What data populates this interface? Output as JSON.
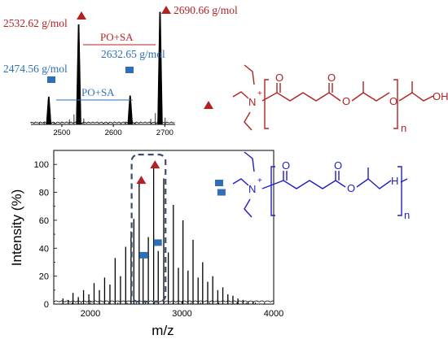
{
  "colors": {
    "red": "#b22222",
    "blue": "#2f6fb5",
    "navy": "#1e1ec8",
    "black": "#000000",
    "guide": "#3c4f6a"
  },
  "chart_data": [
    {
      "type": "line",
      "panel": "inset",
      "title": "",
      "xlabel": "",
      "ylabel": "",
      "xlim": [
        2440,
        2720
      ],
      "x_ticks": [
        "2500",
        "2600",
        "2700"
      ],
      "peaks": [
        {
          "x": 2474.56,
          "rel": 0.24
        },
        {
          "x": 2532.62,
          "rel": 0.87
        },
        {
          "x": 2632.65,
          "rel": 0.25
        },
        {
          "x": 2690.66,
          "rel": 0.98
        }
      ],
      "annotations": [
        {
          "text": "2532.62 g/mol",
          "marker": "triangle",
          "color": "red"
        },
        {
          "text": "2690.66 g/mol",
          "marker": "triangle",
          "color": "red"
        },
        {
          "text": "2474.56 g/mol",
          "marker": "square",
          "color": "blue"
        },
        {
          "text": "2632.65 g/mol",
          "marker": "square",
          "color": "blue"
        },
        {
          "text": "PO+SA",
          "color": "red"
        },
        {
          "text": "PO+SA",
          "color": "blue"
        }
      ]
    },
    {
      "type": "line",
      "panel": "main",
      "title": "",
      "xlabel": "m/z",
      "ylabel": "Intensity  (%)",
      "xlim": [
        1600,
        4000
      ],
      "ylim": [
        0,
        110
      ],
      "x_ticks": [
        "2000",
        "3000",
        "4000"
      ],
      "y_ticks": [
        "0",
        "20",
        "40",
        "60",
        "80",
        "100"
      ],
      "peaks": [
        {
          "x": 1700,
          "y": 4
        },
        {
          "x": 1758,
          "y": 3
        },
        {
          "x": 1810,
          "y": 8
        },
        {
          "x": 1868,
          "y": 5
        },
        {
          "x": 1925,
          "y": 10
        },
        {
          "x": 1983,
          "y": 7
        },
        {
          "x": 2040,
          "y": 15
        },
        {
          "x": 2098,
          "y": 10
        },
        {
          "x": 2155,
          "y": 19
        },
        {
          "x": 2213,
          "y": 14
        },
        {
          "x": 2270,
          "y": 33
        },
        {
          "x": 2328,
          "y": 20
        },
        {
          "x": 2385,
          "y": 41
        },
        {
          "x": 2443,
          "y": 52
        },
        {
          "x": 2474,
          "y": 61
        },
        {
          "x": 2532,
          "y": 87
        },
        {
          "x": 2575,
          "y": 34
        },
        {
          "x": 2632,
          "y": 48
        },
        {
          "x": 2690,
          "y": 98
        },
        {
          "x": 2740,
          "y": 38
        },
        {
          "x": 2800,
          "y": 90
        },
        {
          "x": 2850,
          "y": 37
        },
        {
          "x": 2905,
          "y": 71
        },
        {
          "x": 2960,
          "y": 26
        },
        {
          "x": 3010,
          "y": 60
        },
        {
          "x": 3065,
          "y": 24
        },
        {
          "x": 3120,
          "y": 46
        },
        {
          "x": 3175,
          "y": 19
        },
        {
          "x": 3225,
          "y": 30
        },
        {
          "x": 3280,
          "y": 16
        },
        {
          "x": 3335,
          "y": 20
        },
        {
          "x": 3390,
          "y": 10
        },
        {
          "x": 3445,
          "y": 12
        },
        {
          "x": 3500,
          "y": 7
        },
        {
          "x": 3555,
          "y": 6
        },
        {
          "x": 3610,
          "y": 4
        },
        {
          "x": 3665,
          "y": 3
        },
        {
          "x": 3720,
          "y": 2
        },
        {
          "x": 3775,
          "y": 2
        }
      ],
      "markers": [
        {
          "shape": "triangle",
          "color": "red",
          "x": 2555,
          "y": 89
        },
        {
          "shape": "triangle",
          "color": "red",
          "x": 2705,
          "y": 100
        },
        {
          "shape": "square",
          "color": "blue",
          "x": 2580,
          "y": 35
        },
        {
          "shape": "square",
          "color": "blue",
          "x": 2735,
          "y": 44
        },
        {
          "shape": "square",
          "color": "blue",
          "x": 3430,
          "y": 80
        }
      ],
      "highlight_box": {
        "x0": 2450,
        "x1": 2820,
        "y0": 0,
        "y1": 107
      }
    }
  ],
  "structures": {
    "red": {
      "subscript": "n",
      "atoms": [
        "N",
        "+",
        "O",
        "O",
        "O",
        "O",
        "OH"
      ]
    },
    "blue": {
      "subscript": "n",
      "atoms": [
        "N",
        "+",
        "O",
        "O",
        "O",
        "H"
      ]
    }
  }
}
